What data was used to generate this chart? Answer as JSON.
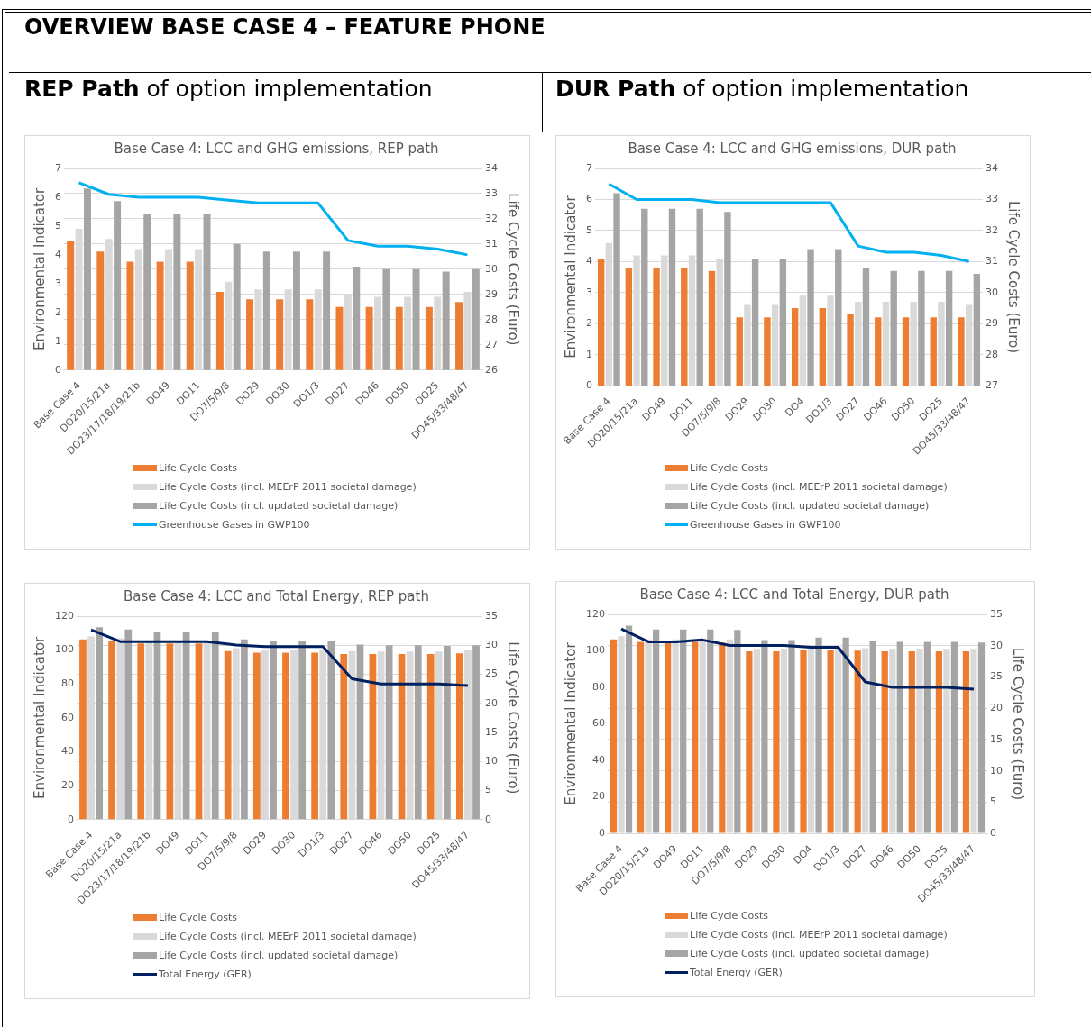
{
  "chart_data": [
    {
      "type": "bar",
      "title": "Base Case 4: LCC and GHG emissions, REP path",
      "subtitle": "REP Path of option implementation",
      "annotations": [
        "OVERVIEW BASE CASE 4 – FEATURE PHONE"
      ],
      "ylabel": "Environmental Indicator",
      "y2label": "Life Cycle Costs (Euro)",
      "categories": [
        "Base Case 4",
        "DO20/15/21a",
        "DO23/17/18/19/21b",
        "DO49",
        "DO11",
        "DO7/5/9/8",
        "DO29",
        "DO30",
        "DO1/3",
        "DO27",
        "DO46",
        "DO50",
        "DO25",
        "DO45/33/48/47"
      ],
      "series": [
        {
          "name": "Life Cycle Costs",
          "color": "#ed7d31",
          "axis": "y2",
          "values": [
            31.1,
            30.7,
            30.3,
            30.3,
            30.3,
            29.1,
            28.8,
            28.8,
            28.8,
            28.5,
            28.5,
            28.5,
            28.5,
            28.7
          ]
        },
        {
          "name": "Life Cycle Costs (incl. MEErP 2011 societal damage)",
          "color": "#d9d9d9",
          "axis": "y2",
          "values": [
            31.6,
            31.2,
            30.8,
            30.8,
            30.8,
            29.5,
            29.2,
            29.2,
            29.2,
            29.0,
            28.9,
            28.9,
            28.9,
            29.1
          ]
        },
        {
          "name": "Life Cycle Costs (incl. updated societal damage)",
          "color": "#a5a5a5",
          "axis": "y2",
          "values": [
            33.2,
            32.7,
            32.2,
            32.2,
            32.2,
            31.0,
            30.7,
            30.7,
            30.7,
            30.1,
            30.0,
            30.0,
            29.9,
            30.0
          ]
        },
        {
          "name": "Greenhouse Gases in GWP100",
          "type": "line",
          "color": "#00b0f0",
          "values": [
            6.5,
            6.1,
            6.0,
            6.0,
            6.0,
            5.9,
            5.8,
            5.8,
            5.8,
            4.5,
            4.3,
            4.3,
            4.2,
            4.0
          ]
        }
      ],
      "ylim": [
        0,
        7
      ],
      "yticks": [
        0,
        1,
        2,
        3,
        4,
        5,
        6,
        7
      ],
      "y2lim": [
        26,
        34
      ],
      "y2ticks": [
        26,
        27,
        28,
        29,
        30,
        31,
        32,
        33,
        34
      ],
      "grid": "y2",
      "legend": "bottom",
      "marker": "none",
      "line_style": "solid"
    },
    {
      "type": "bar",
      "title": "Base Case 4: LCC and GHG emissions, DUR path",
      "subtitle": "DUR Path of option implementation",
      "ylabel": "Environmental Indicator",
      "y2label": "Life Cycle Costs (Euro)",
      "categories": [
        "Base Case 4",
        "DO20/15/21a",
        "DO49",
        "DO11",
        "DO7/5/9/8",
        "DO29",
        "DO30",
        "DO4",
        "DO1/3",
        "DO27",
        "DO46",
        "DO50",
        "DO25",
        "DO45/33/48/47"
      ],
      "series": [
        {
          "name": "Life Cycle Costs",
          "color": "#ed7d31",
          "axis": "y2",
          "values": [
            31.1,
            30.8,
            30.8,
            30.8,
            30.7,
            29.2,
            29.2,
            29.5,
            29.5,
            29.3,
            29.2,
            29.2,
            29.2,
            29.2
          ]
        },
        {
          "name": "Life Cycle Costs (incl. MEErP 2011 societal damage)",
          "color": "#d9d9d9",
          "axis": "y2",
          "values": [
            31.6,
            31.2,
            31.2,
            31.2,
            31.1,
            29.6,
            29.6,
            29.9,
            29.9,
            29.7,
            29.7,
            29.7,
            29.7,
            29.6
          ]
        },
        {
          "name": "Life Cycle Costs (incl. updated societal damage)",
          "color": "#a5a5a5",
          "axis": "y2",
          "values": [
            33.2,
            32.7,
            32.7,
            32.7,
            32.6,
            31.1,
            31.1,
            31.4,
            31.4,
            30.8,
            30.7,
            30.7,
            30.7,
            30.6
          ]
        },
        {
          "name": "Greenhouse Gases in GWP100",
          "type": "line",
          "color": "#00b0f0",
          "values": [
            6.5,
            6.0,
            6.0,
            6.0,
            5.9,
            5.9,
            5.9,
            5.9,
            5.9,
            4.5,
            4.3,
            4.3,
            4.2,
            4.0
          ]
        }
      ],
      "ylim": [
        0,
        7
      ],
      "yticks": [
        0,
        1,
        2,
        3,
        4,
        5,
        6,
        7
      ],
      "y2lim": [
        27,
        34
      ],
      "y2ticks": [
        27,
        28,
        29,
        30,
        31,
        32,
        33,
        34
      ],
      "grid": "y2",
      "legend": "bottom",
      "marker": "none",
      "line_style": "solid"
    },
    {
      "type": "bar",
      "title": "Base Case 4: LCC and Total Energy, REP path",
      "ylabel": "Environmental Indicator",
      "y2label": "Life Cycle Costs (Euro)",
      "categories": [
        "Base Case 4",
        "DO20/15/21a",
        "DO23/17/18/19/21b",
        "DO49",
        "DO11",
        "DO7/5/9/8",
        "DO29",
        "DO30",
        "DO1/3",
        "DO27",
        "DO46",
        "DO50",
        "DO25",
        "DO45/33/48/47"
      ],
      "series": [
        {
          "name": "Life Cycle Costs",
          "color": "#ed7d31",
          "axis": "y2",
          "values": [
            31,
            30.7,
            30.3,
            30.3,
            30.3,
            29,
            28.7,
            28.7,
            28.7,
            28.5,
            28.5,
            28.5,
            28.5,
            28.6
          ]
        },
        {
          "name": "Life Cycle Costs (incl. MEErP 2011 societal damage)",
          "color": "#d9d9d9",
          "axis": "y2",
          "values": [
            31.5,
            31.2,
            30.8,
            30.8,
            30.8,
            29.5,
            29.2,
            29.2,
            29.2,
            29,
            28.9,
            28.9,
            28.9,
            29.1
          ]
        },
        {
          "name": "Life Cycle Costs (incl. updated societal damage)",
          "color": "#a5a5a5",
          "axis": "y2",
          "values": [
            33.1,
            32.7,
            32.2,
            32.2,
            32.2,
            31,
            30.7,
            30.7,
            30.7,
            30.1,
            30,
            30,
            29.9,
            30
          ]
        },
        {
          "name": "Total Energy (GER)",
          "type": "line",
          "color": "#002060",
          "values": [
            112,
            105,
            105,
            105,
            105,
            103,
            102,
            102,
            102,
            83,
            80,
            80,
            80,
            79
          ]
        }
      ],
      "ylim": [
        0,
        120
      ],
      "yticks": [
        0,
        20,
        40,
        60,
        80,
        100,
        120
      ],
      "y2lim": [
        0,
        35
      ],
      "y2ticks": [
        0,
        5,
        10,
        15,
        20,
        25,
        30,
        35
      ],
      "grid": "y2",
      "legend": "bottom",
      "marker": "none",
      "line_style": "solid"
    },
    {
      "type": "bar",
      "title": "Base Case 4: LCC and Total Energy, DUR path",
      "ylabel": "Environmental Indicator",
      "y2label": "Life Cycle Costs (Euro)",
      "categories": [
        "Base Case 4",
        "DO20/15/21a",
        "DO49",
        "DO11",
        "DO7/5/9/8",
        "DO29",
        "DO30",
        "DO4",
        "DO1/3",
        "DO27",
        "DO46",
        "DO50",
        "DO25",
        "DO45/33/48/47"
      ],
      "series": [
        {
          "name": "Life Cycle Costs",
          "color": "#ed7d31",
          "axis": "y2",
          "values": [
            31,
            30.6,
            30.6,
            30.6,
            30.5,
            29.1,
            29.1,
            29.4,
            29.4,
            29.2,
            29.1,
            29.1,
            29.1,
            29.1
          ]
        },
        {
          "name": "Life Cycle Costs (incl. MEErP 2011 societal damage)",
          "color": "#d9d9d9",
          "axis": "y2",
          "values": [
            31.5,
            31,
            31,
            31,
            31,
            29.5,
            29.5,
            29.8,
            29.8,
            29.6,
            29.5,
            29.5,
            29.5,
            29.5
          ]
        },
        {
          "name": "Life Cycle Costs (incl. updated societal damage)",
          "color": "#a5a5a5",
          "axis": "y2",
          "values": [
            33.2,
            32.6,
            32.6,
            32.6,
            32.5,
            30.9,
            30.9,
            31.3,
            31.3,
            30.7,
            30.6,
            30.6,
            30.6,
            30.5
          ]
        },
        {
          "name": "Total Energy (GER)",
          "type": "line",
          "color": "#002060",
          "values": [
            112,
            105,
            105,
            106,
            103,
            103,
            103,
            102,
            102,
            83,
            80,
            80,
            80,
            79
          ]
        }
      ],
      "ylim": [
        0,
        120
      ],
      "yticks": [
        0,
        20,
        40,
        60,
        80,
        100,
        120
      ],
      "y2lim": [
        0,
        35
      ],
      "y2ticks": [
        0,
        5,
        10,
        15,
        20,
        25,
        30,
        35
      ],
      "grid": "y2",
      "legend": "bottom",
      "marker": "none",
      "line_style": "solid"
    }
  ]
}
